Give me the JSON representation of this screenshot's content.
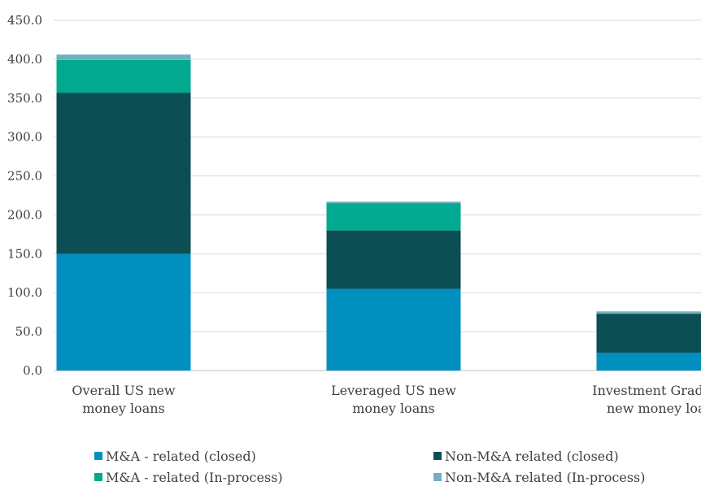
{
  "chart_data": {
    "type": "stacked-bar",
    "title": "",
    "xlabel": "",
    "ylabel": "",
    "ylim": [
      0,
      450
    ],
    "ytick_step": 50,
    "ytick_labels": [
      "0.0",
      "50.0",
      "100.0",
      "150.0",
      "200.0",
      "250.0",
      "300.0",
      "350.0",
      "400.0",
      "450.0"
    ],
    "grid": true,
    "legend_position": "bottom",
    "categories": [
      [
        "Overall US new",
        "money loans"
      ],
      [
        "Leveraged US new",
        "money loans"
      ],
      [
        "Investment Grade US",
        "new money loans"
      ]
    ],
    "series": [
      {
        "name": "M&A - related (closed)",
        "color": "#008fbf",
        "values": [
          150,
          105,
          23
        ]
      },
      {
        "name": "Non-M&A related  (closed)",
        "color": "#0b4f55",
        "values": [
          207,
          75,
          50
        ]
      },
      {
        "name": "M&A - related (In-process)",
        "color": "#00a98f",
        "values": [
          42,
          35,
          0
        ]
      },
      {
        "name": "Non-M&A related  (In-process)",
        "color": "#6fb1c1",
        "values": [
          7,
          2,
          3
        ]
      }
    ],
    "grid_color": "#d9d9d9"
  }
}
